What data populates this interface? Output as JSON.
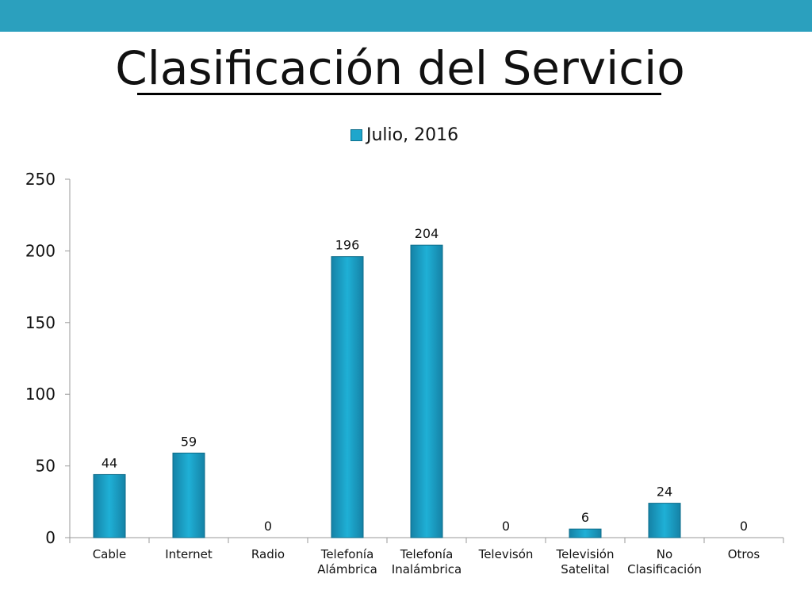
{
  "slide": {
    "title": "Clasificación del Servicio",
    "top_bar_color": "#2ba0be"
  },
  "chart_data": {
    "type": "bar",
    "title": "",
    "xlabel": "",
    "ylabel": "",
    "categories": [
      [
        "Cable"
      ],
      [
        "Internet"
      ],
      [
        "Radio"
      ],
      [
        "Telefonía",
        "Alámbrica"
      ],
      [
        "Telefonía",
        "Inalámbrica"
      ],
      [
        "Televisón"
      ],
      [
        "Televisión",
        "Satelital"
      ],
      [
        "No",
        "Clasificación"
      ],
      [
        "Otros"
      ]
    ],
    "series": [
      {
        "name": "Julio, 2016",
        "values": [
          44,
          59,
          0,
          196,
          204,
          0,
          6,
          24,
          0
        ],
        "color": "#1ea6cc"
      }
    ],
    "ylim": [
      0,
      250
    ],
    "yticks": [
      0,
      50,
      100,
      150,
      200,
      250
    ],
    "data_labels": true,
    "grid": false,
    "legend": "top-center"
  }
}
